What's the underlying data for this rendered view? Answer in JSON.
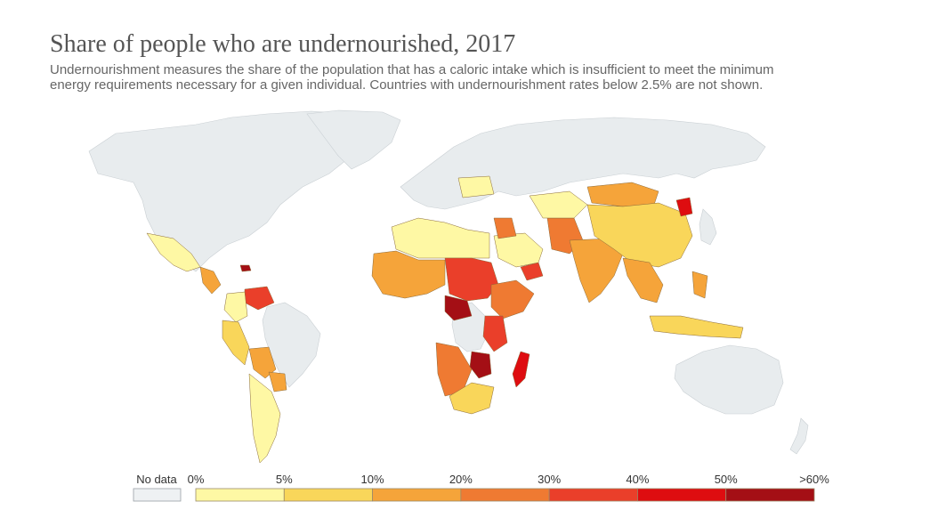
{
  "title": "Share of people who are undernourished, 2017",
  "subtitle": "Undernourishment measures the share of the population that has a caloric intake which is insufficient to meet the minimum energy requirements necessary for a given individual. Countries with undernourishment rates below 2.5% are not shown.",
  "legend": {
    "no_data_label": "No data",
    "no_data_color": "#eef1f3",
    "bins": [
      {
        "label": "0%",
        "color": "#fef8a4"
      },
      {
        "label": "5%",
        "color": "#f9d65a"
      },
      {
        "label": "10%",
        "color": "#f5a43a"
      },
      {
        "label": "20%",
        "color": "#ef7a32"
      },
      {
        "label": "30%",
        "color": "#ea3f2a"
      },
      {
        "label": "40%",
        "color": "#de0d10"
      },
      {
        "label": "50%",
        "color": "#a40f15"
      }
    ],
    "last_label": ">60%"
  }
}
